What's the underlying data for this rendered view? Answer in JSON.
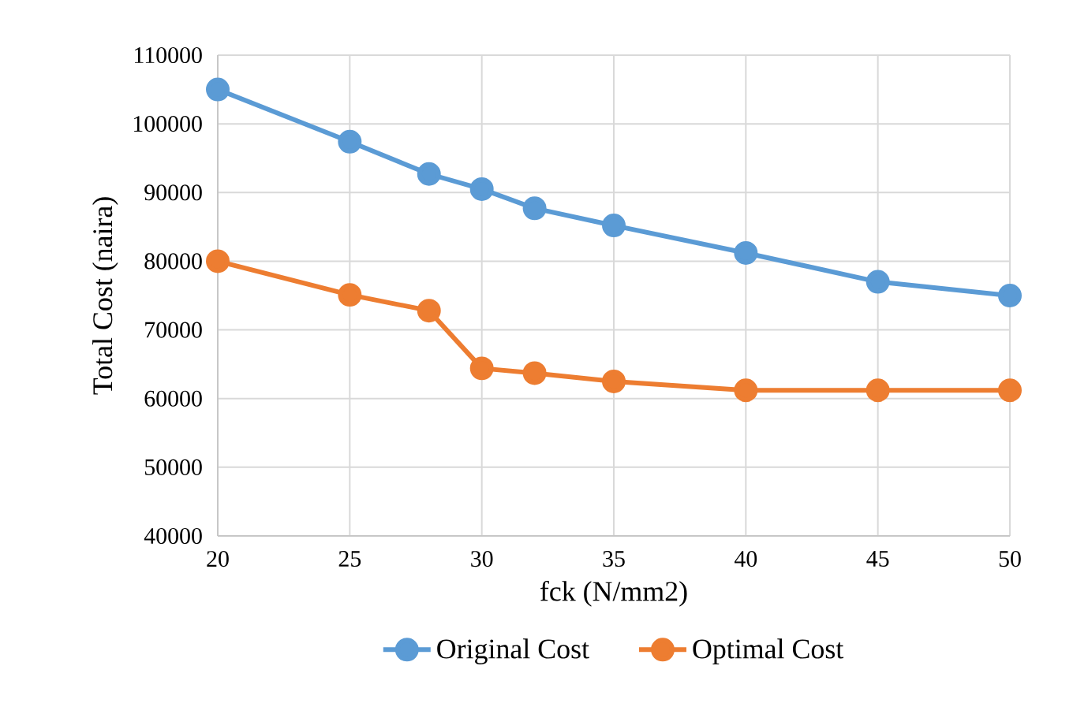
{
  "chart_data": {
    "type": "line",
    "xlabel": "fck (N/mm2)",
    "ylabel": "Total Cost (naira)",
    "x": [
      20,
      25,
      28,
      30,
      32,
      35,
      40,
      45,
      50
    ],
    "series": [
      {
        "name": "Original Cost",
        "color": "#5b9bd5",
        "values": [
          105000,
          97400,
          92700,
          90500,
          87700,
          85200,
          81200,
          77000,
          75000
        ]
      },
      {
        "name": "Optimal Cost",
        "color": "#ed7d31",
        "values": [
          80000,
          75100,
          72800,
          64400,
          63700,
          62500,
          61200,
          61200,
          61200
        ]
      }
    ],
    "xlim": [
      20,
      50
    ],
    "xticks": [
      20,
      25,
      30,
      35,
      40,
      45,
      50
    ],
    "ylim": [
      40000,
      110000
    ],
    "yticks": [
      40000,
      50000,
      60000,
      70000,
      80000,
      90000,
      100000,
      110000
    ],
    "grid": true,
    "legend": "bottom",
    "marker": "circle",
    "line_style": "solid"
  }
}
